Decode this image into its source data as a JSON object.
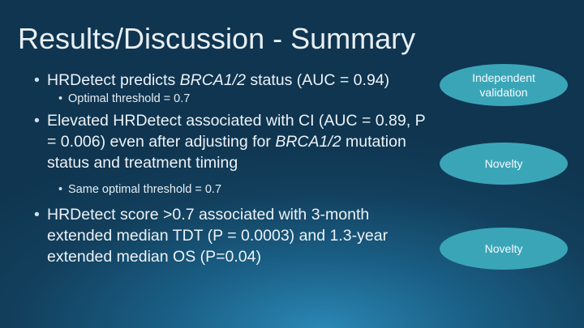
{
  "slide": {
    "title": "Results/Discussion - Summary",
    "bullets": [
      {
        "pre": "HRDetect predicts ",
        "em": "BRCA1/2",
        "post": " status (AUC = 0.94)",
        "sub": "Optimal threshold = 0.7"
      },
      {
        "pre": "Elevated HRDetect associated with CI (AUC = 0.89, P = 0.006) even after adjusting for ",
        "em": "BRCA1/2",
        "post": " mutation status and treatment timing",
        "sub": "Same optimal threshold = 0.7"
      },
      {
        "pre": "HRDetect score >0.7 associated with 3-month extended median TDT (P = 0.0003) and 1.3-year extended median OS (P=0.04)"
      }
    ],
    "callouts": [
      {
        "label": "Independent\nvalidation"
      },
      {
        "label": "Novelty"
      },
      {
        "label": "Novelty"
      }
    ],
    "colors": {
      "callout_fill": "#3ba5b8",
      "background": "#123f5c",
      "text": "#edf2f6"
    }
  }
}
